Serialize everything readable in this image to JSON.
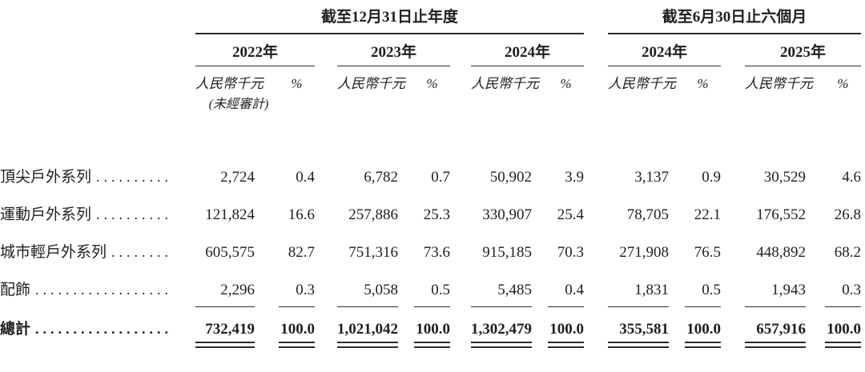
{
  "meta": {
    "background": "#ffffff",
    "text_color": "#1f1f1f",
    "rule_color": "#2b2b2b",
    "leader_char": "."
  },
  "table": {
    "groups": [
      {
        "label": "截至12月31日止年度"
      },
      {
        "label": "截至6月30日止六個月"
      }
    ],
    "columns": [
      {
        "year": "2022年",
        "unit": "人民幣千元",
        "pct": "%",
        "note": ""
      },
      {
        "year": "2023年",
        "unit": "人民幣千元",
        "pct": "%",
        "note": ""
      },
      {
        "year": "2024年",
        "unit": "人民幣千元",
        "pct": "%",
        "note": ""
      },
      {
        "year": "2024年",
        "unit": "人民幣千元",
        "pct": "%",
        "note": "(未經審計)"
      },
      {
        "year": "2025年",
        "unit": "人民幣千元",
        "pct": "%",
        "note": ""
      }
    ],
    "rows": [
      {
        "label": "頂尖戶外系列",
        "cells": [
          "2,724",
          "0.4",
          "6,782",
          "0.7",
          "50,902",
          "3.9",
          "3,137",
          "0.9",
          "30,529",
          "4.6"
        ],
        "rule_below": false,
        "is_total": false
      },
      {
        "label": "運動戶外系列",
        "cells": [
          "121,824",
          "16.6",
          "257,886",
          "25.3",
          "330,907",
          "25.4",
          "78,705",
          "22.1",
          "176,552",
          "26.8"
        ],
        "rule_below": false,
        "is_total": false
      },
      {
        "label": "城市輕戶外系列",
        "cells": [
          "605,575",
          "82.7",
          "751,316",
          "73.6",
          "915,185",
          "70.3",
          "271,908",
          "76.5",
          "448,892",
          "68.2"
        ],
        "rule_below": false,
        "is_total": false
      },
      {
        "label": "配飾",
        "cells": [
          "2,296",
          "0.3",
          "5,058",
          "0.5",
          "5,485",
          "0.4",
          "1,831",
          "0.5",
          "1,943",
          "0.3"
        ],
        "rule_below": true,
        "is_total": false
      },
      {
        "label": "總計",
        "cells": [
          "732,419",
          "100.0",
          "1,021,042",
          "100.0",
          "1,302,479",
          "100.0",
          "355,581",
          "100.0",
          "657,916",
          "100.0"
        ],
        "rule_below": false,
        "is_total": true
      }
    ]
  }
}
